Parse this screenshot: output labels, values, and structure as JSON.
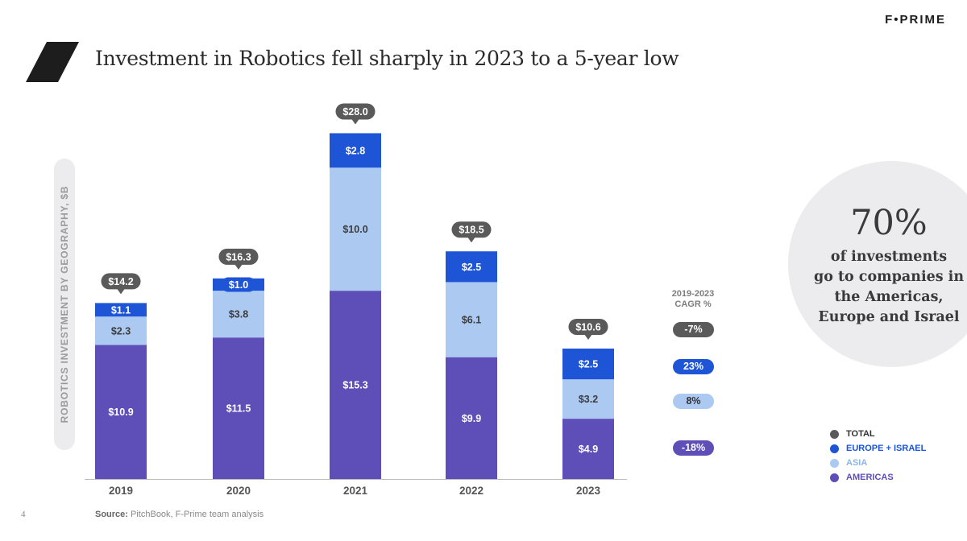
{
  "brand": "F•PRIME",
  "title": "Investment in Robotics fell sharply in 2023 to a 5-year low",
  "colors": {
    "total": "#5a5a5a",
    "europe_israel": "#1d55d6",
    "asia": "#abc9f1",
    "americas": "#5e4fb8"
  },
  "chart_data": {
    "type": "bar",
    "stacked": true,
    "ylabel": "ROBOTICS INVESTMENT BY GEOGRAPHY, $B",
    "categories": [
      "2019",
      "2020",
      "2021",
      "2022",
      "2023"
    ],
    "series": [
      {
        "name": "AMERICAS",
        "values": [
          10.9,
          11.5,
          15.3,
          9.9,
          4.9
        ],
        "labels": [
          "$10.9",
          "$11.5",
          "$15.3",
          "$9.9",
          "$4.9"
        ],
        "color": "#5e4fb8"
      },
      {
        "name": "ASIA",
        "values": [
          2.3,
          3.8,
          10.0,
          6.1,
          3.2
        ],
        "labels": [
          "$2.3",
          "$3.8",
          "$10.0",
          "$6.1",
          "$3.2"
        ],
        "color": "#abc9f1"
      },
      {
        "name": "EUROPE + ISRAEL",
        "values": [
          1.1,
          1.0,
          2.8,
          2.5,
          2.5
        ],
        "labels": [
          "$1.1",
          "$1.0",
          "$2.8",
          "$2.5",
          "$2.5"
        ],
        "color": "#1d55d6"
      }
    ],
    "totals": {
      "name": "TOTAL",
      "values": [
        14.2,
        16.3,
        28.0,
        18.5,
        10.6
      ],
      "labels": [
        "$14.2",
        "$16.3",
        "$28.0",
        "$18.5",
        "$10.6"
      ]
    },
    "ylim": [
      0,
      28
    ],
    "legend_position": "bottom-right"
  },
  "cagr": {
    "title_line1": "2019-2023",
    "title_line2": "CAGR %",
    "items": [
      {
        "label": "-7%",
        "series": "TOTAL",
        "bg": "#5a5a5a",
        "fg": "#ffffff"
      },
      {
        "label": "23%",
        "series": "EUROPE + ISRAEL",
        "bg": "#1d55d6",
        "fg": "#ffffff"
      },
      {
        "label": "8%",
        "series": "ASIA",
        "bg": "#abc9f1",
        "fg": "#333333"
      },
      {
        "label": "-18%",
        "series": "AMERICAS",
        "bg": "#5e4fb8",
        "fg": "#ffffff"
      }
    ]
  },
  "callout": {
    "big": "70%",
    "line1": "of investments",
    "line2": "go to companies in",
    "line3": "the Americas,",
    "line4": "Europe and Israel"
  },
  "legend": [
    {
      "label": "TOTAL",
      "color": "#5a5a5a",
      "text_color": "#333333"
    },
    {
      "label": "EUROPE + ISRAEL",
      "color": "#1d55d6",
      "text_color": "#1d55d6"
    },
    {
      "label": "ASIA",
      "color": "#abc9f1",
      "text_color": "#8fb6ea"
    },
    {
      "label": "AMERICAS",
      "color": "#5e4fb8",
      "text_color": "#5e4fb8"
    }
  ],
  "footer": {
    "page_number": "4",
    "source_label": "Source:",
    "source_text": " PitchBook, F-Prime team analysis"
  }
}
